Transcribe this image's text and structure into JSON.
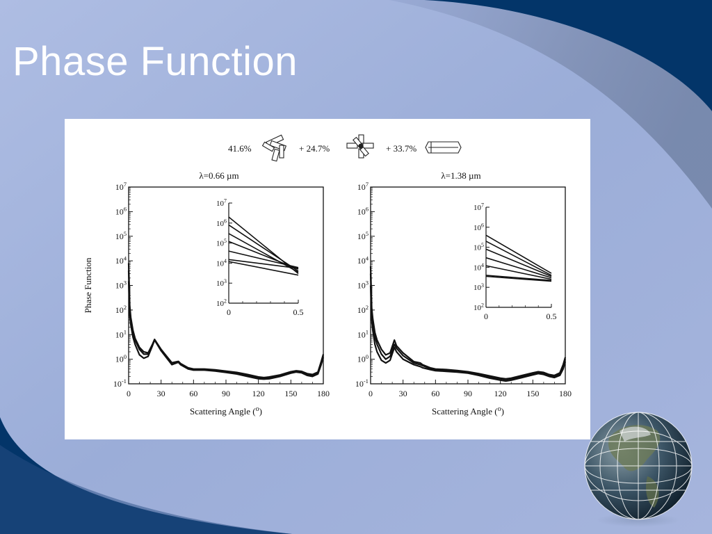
{
  "slide": {
    "title": "Phase Function",
    "colors": {
      "background_light": "#a6b6de",
      "swoosh_dark": "#033569",
      "title_text": "#ffffff"
    }
  },
  "mixture": {
    "terms": [
      {
        "label": "41.6%",
        "icon": "aggregate-crystal-icon"
      },
      {
        "label": "+ 24.7%",
        "icon": "bullet-rosette-icon"
      },
      {
        "label": "+ 33.7%",
        "icon": "hexagonal-column-icon"
      }
    ]
  },
  "decoration": {
    "icon": "earth-globe-icon"
  },
  "chart_data": [
    {
      "type": "line",
      "title": "λ=0.66 µm",
      "ylabel": "Phase Function",
      "xlabel": "Scattering Angle (o)",
      "yscale": "log",
      "xlim": [
        0,
        180
      ],
      "ylim": [
        0.1,
        10000000
      ],
      "xticks": [
        "0",
        "30",
        "60",
        "90",
        "120",
        "150",
        "180"
      ],
      "yticks": [
        "10-1",
        "100",
        "101",
        "102",
        "103",
        "104",
        "105",
        "106",
        "107"
      ],
      "series": [
        {
          "x": [
            0,
            1,
            2,
            4,
            6,
            10,
            14,
            18,
            22,
            24,
            30,
            40,
            46,
            48,
            55,
            60,
            70,
            80,
            90,
            100,
            110,
            120,
            125,
            130,
            140,
            150,
            155,
            160,
            165,
            170,
            175,
            178,
            180
          ],
          "y": [
            1500,
            60,
            25,
            8,
            4,
            1.5,
            1.1,
            1.3,
            3.5,
            6,
            2.2,
            0.6,
            0.75,
            0.6,
            0.4,
            0.36,
            0.36,
            0.33,
            0.29,
            0.25,
            0.2,
            0.16,
            0.155,
            0.16,
            0.2,
            0.27,
            0.3,
            0.28,
            0.22,
            0.2,
            0.25,
            0.6,
            1.2
          ]
        },
        {
          "x": [
            0,
            1,
            2,
            4,
            6,
            10,
            14,
            18,
            22,
            24,
            30,
            40,
            46,
            48,
            55,
            60,
            70,
            80,
            90,
            100,
            110,
            120,
            125,
            130,
            140,
            150,
            155,
            160,
            165,
            170,
            175,
            178,
            180
          ],
          "y": [
            4000,
            100,
            40,
            12,
            6,
            2.5,
            1.6,
            1.6,
            3.8,
            6.2,
            2.4,
            0.7,
            0.8,
            0.65,
            0.43,
            0.38,
            0.38,
            0.35,
            0.31,
            0.27,
            0.22,
            0.18,
            0.17,
            0.18,
            0.22,
            0.29,
            0.32,
            0.3,
            0.24,
            0.22,
            0.28,
            0.7,
            1.4
          ]
        },
        {
          "x": [
            0,
            1,
            2,
            4,
            6,
            10,
            14,
            18,
            22,
            24,
            30,
            40,
            46,
            48,
            55,
            60,
            70,
            80,
            90,
            100,
            110,
            120,
            125,
            130,
            140,
            150,
            155,
            160,
            165,
            170,
            175,
            178,
            180
          ],
          "y": [
            8000,
            150,
            50,
            15,
            7,
            3,
            2,
            1.8,
            4,
            6.4,
            2.5,
            0.72,
            0.82,
            0.67,
            0.45,
            0.4,
            0.4,
            0.37,
            0.33,
            0.29,
            0.24,
            0.19,
            0.18,
            0.19,
            0.23,
            0.31,
            0.34,
            0.32,
            0.26,
            0.24,
            0.3,
            0.8,
            1.6
          ]
        }
      ],
      "inset": {
        "xlim": [
          0,
          0.5
        ],
        "ylim": [
          100,
          10000000
        ],
        "xticks": [
          "0",
          "0.5"
        ],
        "yticks": [
          "102",
          "103",
          "104",
          "105",
          "106",
          "107"
        ],
        "series": [
          {
            "x": [
              0,
              0.5
            ],
            "y": [
              2000000,
              3000
            ]
          },
          {
            "x": [
              0,
              0.5
            ],
            "y": [
              800000,
              4000
            ]
          },
          {
            "x": [
              0,
              0.5
            ],
            "y": [
              300000,
              3500
            ]
          },
          {
            "x": [
              0,
              0.5
            ],
            "y": [
              120000,
              5000
            ]
          },
          {
            "x": [
              0,
              0.5
            ],
            "y": [
              40000,
              6000
            ]
          },
          {
            "x": [
              0,
              0.5
            ],
            "y": [
              15000,
              5500
            ]
          },
          {
            "x": [
              0,
              0.5
            ],
            "y": [
              12000,
              2500
            ]
          }
        ]
      }
    },
    {
      "type": "line",
      "title": "λ=1.38 µm",
      "xlabel": "Scattering Angle (o)",
      "yscale": "log",
      "xlim": [
        0,
        180
      ],
      "ylim": [
        0.1,
        10000000
      ],
      "xticks": [
        "0",
        "30",
        "60",
        "90",
        "120",
        "150",
        "180"
      ],
      "yticks": [
        "10-1",
        "100",
        "101",
        "102",
        "103",
        "104",
        "105",
        "106",
        "107"
      ],
      "series": [
        {
          "x": [
            0,
            1,
            2,
            4,
            6,
            10,
            14,
            18,
            22,
            24,
            30,
            40,
            46,
            48,
            55,
            60,
            70,
            80,
            90,
            100,
            110,
            120,
            125,
            130,
            140,
            150,
            155,
            160,
            165,
            170,
            175,
            178,
            180
          ],
          "y": [
            1000,
            40,
            15,
            4,
            2,
            0.9,
            0.7,
            0.9,
            3,
            2,
            1,
            0.6,
            0.5,
            0.45,
            0.38,
            0.34,
            0.32,
            0.3,
            0.27,
            0.22,
            0.17,
            0.14,
            0.13,
            0.14,
            0.18,
            0.23,
            0.26,
            0.24,
            0.2,
            0.18,
            0.22,
            0.4,
            0.8
          ]
        },
        {
          "x": [
            0,
            1,
            2,
            4,
            6,
            10,
            14,
            18,
            22,
            24,
            30,
            40,
            46,
            48,
            55,
            60,
            70,
            80,
            90,
            100,
            110,
            120,
            125,
            130,
            140,
            150,
            155,
            160,
            165,
            170,
            175,
            178,
            180
          ],
          "y": [
            3000,
            80,
            30,
            8,
            4,
            1.6,
            1.0,
            1.3,
            4,
            2.8,
            1.4,
            0.7,
            0.6,
            0.55,
            0.42,
            0.37,
            0.35,
            0.32,
            0.29,
            0.24,
            0.19,
            0.16,
            0.15,
            0.16,
            0.2,
            0.25,
            0.28,
            0.26,
            0.22,
            0.2,
            0.25,
            0.5,
            1.0
          ]
        },
        {
          "x": [
            0,
            1,
            2,
            4,
            6,
            10,
            14,
            18,
            22,
            24,
            30,
            40,
            46,
            48,
            55,
            60,
            70,
            80,
            90,
            100,
            110,
            120,
            125,
            130,
            140,
            150,
            155,
            160,
            165,
            170,
            175,
            178,
            180
          ],
          "y": [
            6000,
            120,
            45,
            12,
            6,
            2.5,
            1.5,
            1.8,
            6,
            3.5,
            1.8,
            0.8,
            0.7,
            0.6,
            0.45,
            0.4,
            0.38,
            0.35,
            0.31,
            0.26,
            0.21,
            0.17,
            0.16,
            0.17,
            0.22,
            0.28,
            0.31,
            0.29,
            0.24,
            0.22,
            0.28,
            0.6,
            1.2
          ]
        }
      ],
      "inset": {
        "xlim": [
          0,
          0.5
        ],
        "ylim": [
          100,
          10000000
        ],
        "xticks": [
          "0",
          "0.5"
        ],
        "yticks": [
          "102",
          "103",
          "104",
          "105",
          "106",
          "107"
        ],
        "series": [
          {
            "x": [
              0,
              0.5
            ],
            "y": [
              400000,
              5000
            ]
          },
          {
            "x": [
              0,
              0.5
            ],
            "y": [
              200000,
              4000
            ]
          },
          {
            "x": [
              0,
              0.5
            ],
            "y": [
              80000,
              3500
            ]
          },
          {
            "x": [
              0,
              0.5
            ],
            "y": [
              30000,
              3000
            ]
          },
          {
            "x": [
              0,
              0.5
            ],
            "y": [
              12000,
              2500
            ]
          },
          {
            "x": [
              0,
              0.5
            ],
            "y": [
              4000,
              2200
            ]
          },
          {
            "x": [
              0,
              0.5
            ],
            "y": [
              3500,
              2000
            ]
          }
        ]
      }
    }
  ]
}
